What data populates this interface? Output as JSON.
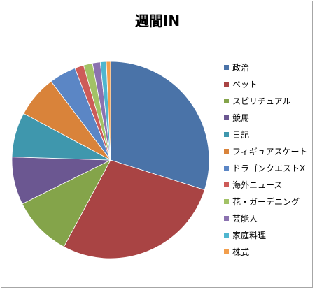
{
  "chart_data": {
    "type": "pie",
    "title": "週間IN",
    "legend_position": "right",
    "categories": [
      "政治",
      "ペット",
      "スピリチュアル",
      "競馬",
      "日記",
      "フィギュアスケート",
      "ドラゴンクエストⅩ",
      "海外ニュース",
      "花・ガーデニング",
      "芸能人",
      "家庭料理",
      "株式"
    ],
    "values": [
      30.5,
      28.5,
      10,
      8,
      7.5,
      7,
      4.5,
      1.5,
      1.5,
      1.3,
      1,
      0.7
    ],
    "colors": [
      "#4a73a8",
      "#a94444",
      "#84a44a",
      "#6b5791",
      "#3f97ad",
      "#d9833a",
      "#5b86c5",
      "#cd5b58",
      "#a2c266",
      "#8b72b0",
      "#4fb6cf",
      "#f29e4c"
    ]
  }
}
